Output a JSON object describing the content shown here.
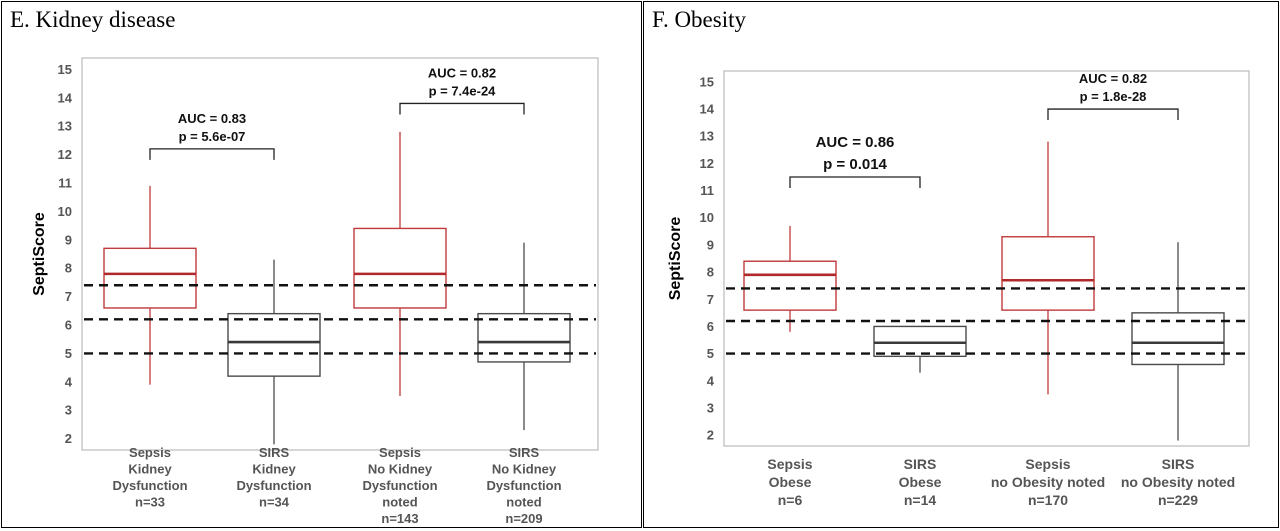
{
  "panels": [
    {
      "title": "E. Kidney disease"
    },
    {
      "title": "F. Obesity"
    }
  ],
  "colors": {
    "sepsis": "#c0393b",
    "sepsis_median": "#b0282b",
    "sirs": "#4a4a4a",
    "sirs_median": "#3a3a3a",
    "threshold": "#111111",
    "axis_text": "#555555",
    "frame": "#bbbbbb"
  },
  "chart_data": [
    {
      "type": "box",
      "title": "",
      "ylabel": "SeptiScore",
      "ylim": [
        1.6,
        15.4
      ],
      "yticks": [
        2,
        3,
        4,
        5,
        6,
        7,
        8,
        9,
        10,
        11,
        12,
        13,
        14,
        15
      ],
      "grid": false,
      "thresholds": [
        5.0,
        6.2,
        7.4
      ],
      "categories": [
        [
          "Sepsis",
          "Kidney",
          "Dysfunction",
          "n=33"
        ],
        [
          "SIRS",
          "Kidney",
          "Dysfunction",
          "n=34"
        ],
        [
          "Sepsis",
          "No Kidney",
          "Dysfunction",
          "noted",
          "n=143"
        ],
        [
          "SIRS",
          "No Kidney",
          "Dysfunction",
          "noted",
          "n=209"
        ]
      ],
      "boxes": [
        {
          "group": "Sepsis",
          "whisker_low": 3.9,
          "q1": 6.6,
          "median": 7.8,
          "q3": 8.7,
          "whisker_high": 10.9
        },
        {
          "group": "SIRS",
          "whisker_low": 1.8,
          "q1": 4.2,
          "median": 5.4,
          "q3": 6.4,
          "whisker_high": 8.3
        },
        {
          "group": "Sepsis",
          "whisker_low": 3.5,
          "q1": 6.6,
          "median": 7.8,
          "q3": 9.4,
          "whisker_high": 12.8
        },
        {
          "group": "SIRS",
          "whisker_low": 2.3,
          "q1": 4.7,
          "median": 5.4,
          "q3": 6.4,
          "whisker_high": 8.9
        }
      ],
      "comparisons": [
        {
          "between": [
            0,
            1
          ],
          "bracket_y": 12.2,
          "auc": "AUC = 0.83",
          "p": "p = 5.6e-07",
          "emphasis": false
        },
        {
          "between": [
            2,
            3
          ],
          "bracket_y": 13.8,
          "auc": "AUC = 0.82",
          "p": "p = 7.4e-24",
          "emphasis": false
        }
      ]
    },
    {
      "type": "box",
      "title": "",
      "ylabel": "SeptiScore",
      "ylim": [
        1.6,
        15.4
      ],
      "yticks": [
        2,
        3,
        4,
        5,
        6,
        7,
        8,
        9,
        10,
        11,
        12,
        13,
        14,
        15
      ],
      "grid": false,
      "thresholds": [
        5.0,
        6.2,
        7.4
      ],
      "categories": [
        [
          "Sepsis",
          "Obese",
          "n=6"
        ],
        [
          "SIRS",
          "Obese",
          "n=14"
        ],
        [
          "Sepsis",
          "no Obesity noted",
          "n=170"
        ],
        [
          "SIRS",
          "no Obesity noted",
          "n=229"
        ]
      ],
      "boxes": [
        {
          "group": "Sepsis",
          "whisker_low": 5.8,
          "q1": 6.6,
          "median": 7.9,
          "q3": 8.4,
          "whisker_high": 9.7
        },
        {
          "group": "SIRS",
          "whisker_low": 4.3,
          "q1": 4.9,
          "median": 5.4,
          "q3": 6.0,
          "whisker_high": 6.0
        },
        {
          "group": "Sepsis",
          "whisker_low": 3.5,
          "q1": 6.6,
          "median": 7.7,
          "q3": 9.3,
          "whisker_high": 12.8
        },
        {
          "group": "SIRS",
          "whisker_low": 1.8,
          "q1": 4.6,
          "median": 5.4,
          "q3": 6.5,
          "whisker_high": 9.1
        }
      ],
      "comparisons": [
        {
          "between": [
            0,
            1
          ],
          "bracket_y": 11.5,
          "auc": "AUC = 0.86",
          "p": "p = 0.014",
          "emphasis": true
        },
        {
          "between": [
            2,
            3
          ],
          "bracket_y": 14.0,
          "auc": "AUC = 0.82",
          "p": "p = 1.8e-28",
          "emphasis": false
        }
      ]
    }
  ]
}
